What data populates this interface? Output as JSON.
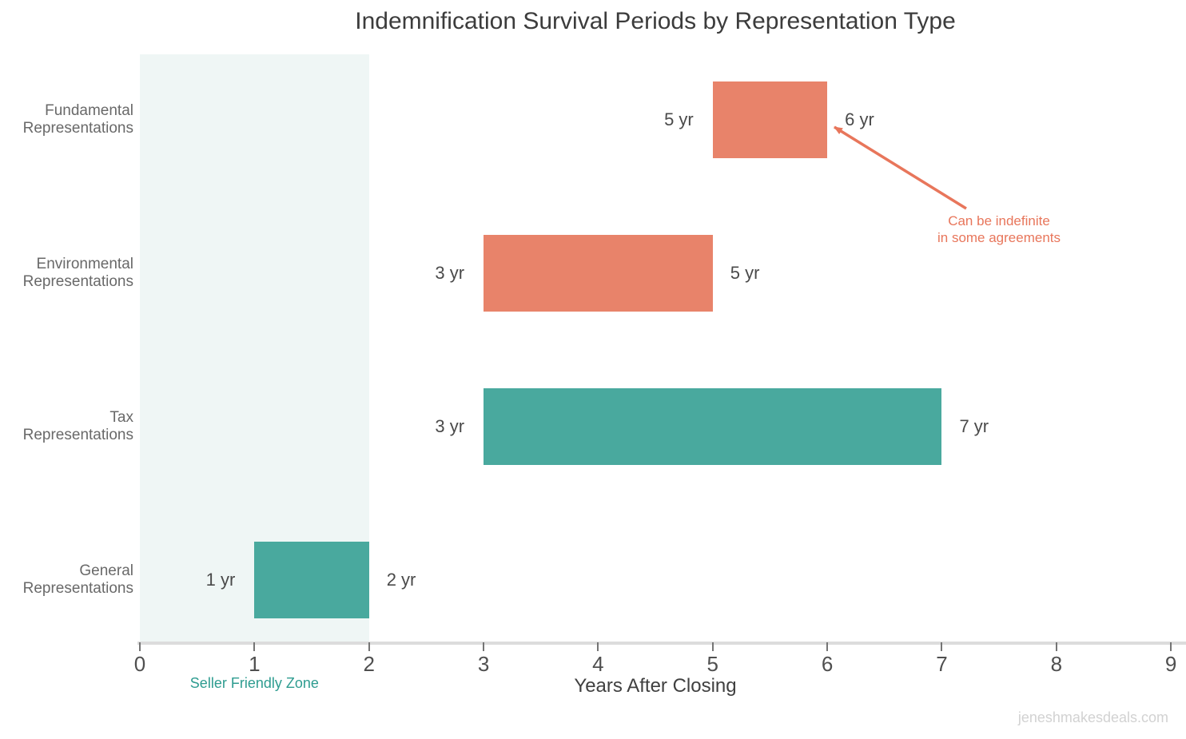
{
  "page": {
    "watermark": "jeneshmakesdeals.com"
  },
  "colors": {
    "salmon": "#E8836A",
    "teal": "#49A99E",
    "zone_fill": "#EFF6F5",
    "zone_label": "#2E9C90",
    "annotation": "#E8765B",
    "axis_line": "#DCDCDC",
    "title_text": "#3C3C3C"
  },
  "chart_data": {
    "type": "bar",
    "orientation": "horizontal",
    "title": "Indemnification Survival Periods by Representation Type",
    "xlabel": "Years After Closing",
    "xlim": [
      0,
      9
    ],
    "xticks": [
      "0",
      "1",
      "2",
      "3",
      "4",
      "5",
      "6",
      "7",
      "8",
      "9"
    ],
    "grid": false,
    "legend": "none",
    "categories": [
      "Fundamental Representations",
      "Environmental Representations",
      "Tax Representations",
      "General Representations"
    ],
    "bars": [
      {
        "category": "Fundamental Representations",
        "category_label": "Fundamental\nRepresentations",
        "start": 5,
        "end": 6,
        "start_label": "5 yr",
        "end_label": "6 yr",
        "color": "#E8836A"
      },
      {
        "category": "Environmental Representations",
        "category_label": "Environmental\nRepresentations",
        "start": 3,
        "end": 5,
        "start_label": "3 yr",
        "end_label": "5 yr",
        "color": "#E8836A"
      },
      {
        "category": "Tax Representations",
        "category_label": "Tax\nRepresentations",
        "start": 3,
        "end": 7,
        "start_label": "3 yr",
        "end_label": "7 yr",
        "color": "#49A99E"
      },
      {
        "category": "General Representations",
        "category_label": "General\nRepresentations",
        "start": 1,
        "end": 2,
        "start_label": "1 yr",
        "end_label": "2 yr",
        "color": "#49A99E"
      }
    ],
    "zone": {
      "label": "Seller Friendly Zone",
      "start": 0,
      "end": 2,
      "fill": "#EFF6F5",
      "label_color": "#2E9C90"
    },
    "annotation": {
      "text": "Can be indefinite\nin some agreements",
      "color": "#E8765B",
      "points_to": "end of Fundamental Representations bar (6 yr)"
    }
  }
}
